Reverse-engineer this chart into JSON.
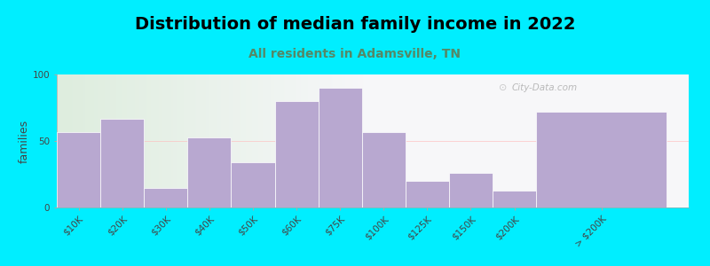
{
  "title": "Distribution of median family income in 2022",
  "subtitle": "All residents in Adamsville, TN",
  "ylabel": "families",
  "categories": [
    "$10K",
    "$20K",
    "$30K",
    "$40K",
    "$50K",
    "$60K",
    "$75K",
    "$100K",
    "$125K",
    "$150K",
    "$200K",
    "> $200K"
  ],
  "values": [
    57,
    67,
    15,
    53,
    34,
    80,
    90,
    57,
    20,
    26,
    13,
    72
  ],
  "bar_color": "#b8a8d0",
  "background_outer": "#00eeff",
  "bg_left_color": "#deeedd",
  "bg_right_color": "#f0f0f8",
  "ylim": [
    0,
    100
  ],
  "yticks": [
    0,
    50,
    100
  ],
  "watermark": "City-Data.com",
  "title_fontsize": 14,
  "subtitle_fontsize": 10,
  "ylabel_fontsize": 9,
  "tick_fontsize": 7.5,
  "bar_widths": [
    1,
    1,
    1,
    1,
    1,
    1,
    1,
    1,
    1,
    1,
    1,
    3
  ],
  "bar_positions": [
    0.5,
    1.5,
    2.5,
    3.5,
    4.5,
    5.5,
    6.5,
    7.5,
    8.5,
    9.5,
    10.5,
    12.5
  ]
}
